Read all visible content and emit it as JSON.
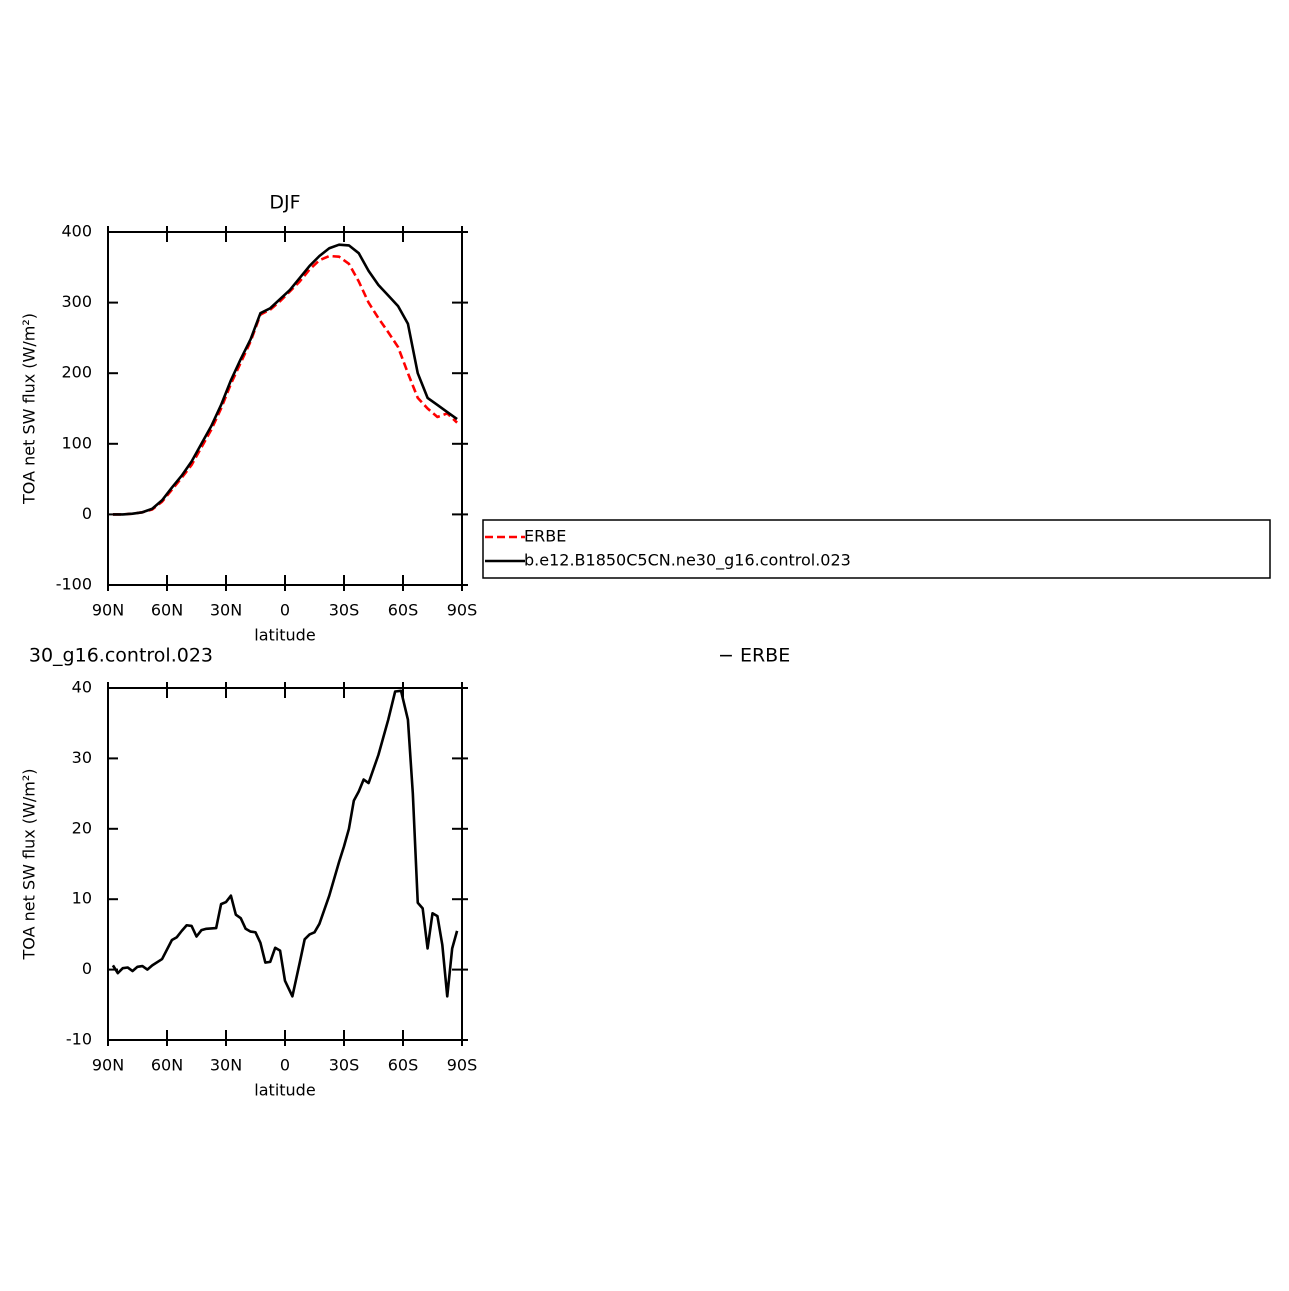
{
  "chart_data": [
    {
      "type": "line",
      "title": "DJF",
      "xlabel": "latitude",
      "ylabel": "TOA net SW flux (W/m²)",
      "x": [
        87.5,
        82.5,
        77.5,
        72.5,
        67.5,
        62.5,
        57.5,
        52.5,
        47.5,
        42.5,
        37.5,
        32.5,
        27.5,
        22.5,
        17.5,
        12.5,
        7.5,
        2.5,
        -2.5,
        -7.5,
        -12.5,
        -17.5,
        -22.5,
        -27.5,
        -32.5,
        -37.5,
        -42.5,
        -47.5,
        -52.5,
        -57.5,
        -62.5,
        -67.5,
        -72.5,
        -77.5,
        -82.5,
        -87.5
      ],
      "series": [
        {
          "name": "ERBE",
          "color": "#ff0000",
          "dash": "dashed",
          "values": [
            0,
            0,
            1,
            3,
            7,
            18,
            35,
            52,
            70,
            95,
            120,
            150,
            185,
            215,
            245,
            283,
            290,
            302,
            316,
            330,
            347,
            360,
            366,
            365,
            355,
            330,
            300,
            278,
            258,
            237,
            200,
            165,
            150,
            138,
            143,
            130
          ]
        },
        {
          "name": "b.e12.B1850C5CN.ne30_g16.control.023",
          "color": "#000000",
          "dash": "solid",
          "values": [
            0,
            0,
            1,
            3,
            8,
            20,
            38,
            55,
            75,
            100,
            125,
            155,
            190,
            220,
            248,
            285,
            292,
            305,
            318,
            335,
            352,
            366,
            377,
            382,
            381,
            370,
            345,
            325,
            310,
            295,
            270,
            200,
            165,
            155,
            145,
            135
          ]
        }
      ],
      "xlim": [
        90,
        -90
      ],
      "xticks": [
        {
          "value": 90,
          "label": "90N"
        },
        {
          "value": 60,
          "label": "60N"
        },
        {
          "value": 30,
          "label": "30N"
        },
        0,
        {
          "value": -30,
          "label": "30S"
        },
        {
          "value": -60,
          "label": "60S"
        },
        {
          "value": -90,
          "label": "90S"
        }
      ],
      "ylim": [
        -100,
        400
      ],
      "yticks": [
        -100,
        0,
        100,
        200,
        300,
        400
      ],
      "legend": "right"
    },
    {
      "type": "line",
      "left_title": "30_g16.control.023",
      "right_title": "− ERBE",
      "xlabel": "latitude",
      "ylabel": "TOA net SW flux (W/m²)",
      "x": [
        87.5,
        85,
        82.5,
        80,
        77.5,
        75,
        72.5,
        70,
        67.5,
        62.5,
        57.5,
        55,
        52.5,
        50,
        47.5,
        45,
        42.5,
        40,
        35,
        32.5,
        30,
        27.5,
        25,
        22.5,
        20,
        17.5,
        15,
        12.5,
        10,
        7.5,
        5,
        2.5,
        0,
        -3.75,
        -7.5,
        -10,
        -12.5,
        -15,
        -17.5,
        -22.5,
        -27.5,
        -30,
        -32.5,
        -35,
        -37.5,
        -40,
        -42.5,
        -45,
        -47.5,
        -52.5,
        -56,
        -59,
        -62.5,
        -65,
        -67.5,
        -70,
        -72.5,
        -75,
        -77.5,
        -80,
        -82.5,
        -85,
        -87.5
      ],
      "values": [
        0.6,
        -0.5,
        0.2,
        0.3,
        -0.2,
        0.4,
        0.5,
        0,
        0.6,
        1.5,
        4.2,
        4.6,
        5.5,
        6.3,
        6.2,
        4.7,
        5.6,
        5.8,
        5.9,
        9.3,
        9.6,
        10.5,
        7.8,
        7.3,
        5.8,
        5.4,
        5.3,
        3.8,
        1,
        1.1,
        3.1,
        2.7,
        -1.6,
        -3.8,
        1,
        4.3,
        5,
        5.3,
        6.5,
        10.5,
        15.3,
        17.5,
        20,
        24,
        25.3,
        27,
        26.5,
        28.5,
        30.5,
        35.5,
        39.5,
        39.6,
        35.5,
        25,
        9.5,
        8.7,
        3,
        8,
        7.6,
        3.5,
        -3.8,
        3,
        5.5
      ],
      "color": "#000000",
      "xlim": [
        90,
        -90
      ],
      "xticks": [
        {
          "value": 90,
          "label": "90N"
        },
        {
          "value": 60,
          "label": "60N"
        },
        {
          "value": 30,
          "label": "30N"
        },
        0,
        {
          "value": -30,
          "label": "30S"
        },
        {
          "value": -60,
          "label": "60S"
        },
        {
          "value": -90,
          "label": "90S"
        }
      ],
      "ylim": [
        -10,
        40
      ],
      "yticks": [
        -10,
        0,
        10,
        20,
        30,
        40
      ]
    }
  ]
}
